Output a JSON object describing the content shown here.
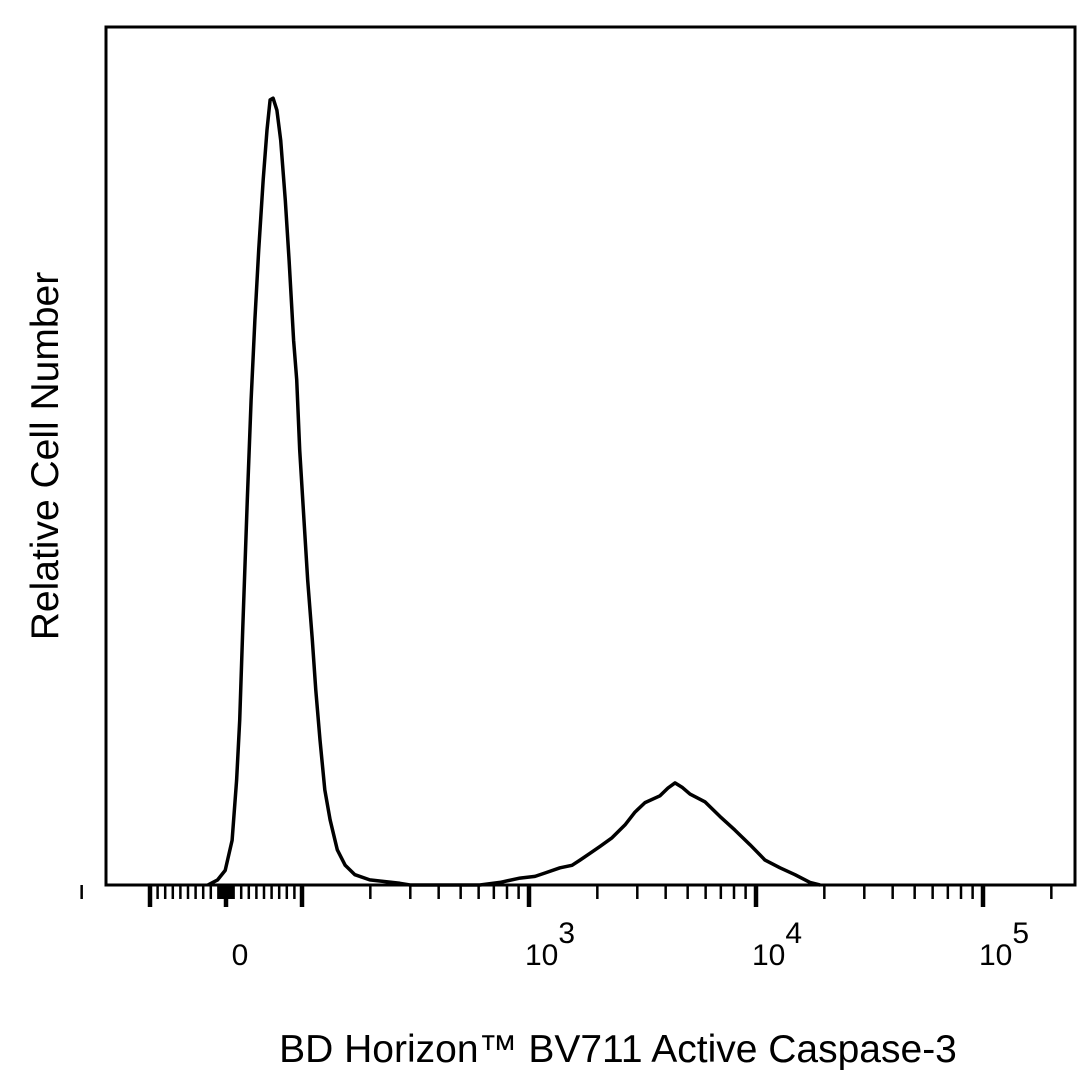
{
  "chart_data": {
    "type": "line",
    "title": "",
    "xlabel": "BD Horizon™ BV711 Active Caspase-3",
    "ylabel": "Relative Cell Number",
    "x_scale": "biexponential (linear near 0, log above 10^2)",
    "xlim": [
      -200,
      200000
    ],
    "ylim": [
      0,
      100
    ],
    "grid": false,
    "legend": "none",
    "line_color": "#000000",
    "x_tick_labels": [
      {
        "value": 0,
        "base": "0",
        "exp": ""
      },
      {
        "value": 1000,
        "base": "10",
        "exp": "3"
      },
      {
        "value": 10000,
        "base": "10",
        "exp": "4"
      },
      {
        "value": 100000,
        "base": "10",
        "exp": "5"
      }
    ],
    "major_ticks": [
      -100,
      0,
      100,
      1000,
      10000,
      100000
    ],
    "series": [
      {
        "x": [
          -24,
          -11,
          -1,
          8,
          14,
          18,
          22,
          28,
          33,
          38,
          43,
          49,
          54,
          58,
          62,
          67,
          72,
          78,
          83,
          89,
          93,
          97,
          102,
          106,
          111,
          115,
          120,
          126,
          133,
          143,
          155,
          171,
          199,
          270,
          299,
          608,
          745,
          913,
          1063,
          1176,
          1370,
          1546,
          1678,
          1857,
          2055,
          2321,
          2649,
          2930,
          3243,
          3776,
          4095,
          4397,
          4722,
          5119,
          5957,
          6934,
          8072,
          9411,
          10960,
          12760,
          14850,
          17290,
          19140
        ],
        "y": [
          0,
          0.6,
          1.7,
          5.2,
          12.2,
          19.2,
          29.7,
          44.9,
          56.5,
          65.9,
          74.0,
          82.2,
          88.0,
          91.5,
          91.7,
          90.3,
          86.8,
          79.8,
          72.8,
          63.5,
          58.9,
          50.7,
          42.5,
          35.5,
          28.6,
          22.7,
          16.9,
          11.1,
          7.6,
          4.1,
          2.3,
          1.2,
          0.6,
          0.2,
          0,
          0,
          0.3,
          0.8,
          1.0,
          1.4,
          2.0,
          2.3,
          2.9,
          3.7,
          4.5,
          5.5,
          7.0,
          8.5,
          9.6,
          10.4,
          11.3,
          11.9,
          11.4,
          10.6,
          9.7,
          8.0,
          6.4,
          4.7,
          2.9,
          2.0,
          1.2,
          0.3,
          0
        ]
      }
    ]
  }
}
